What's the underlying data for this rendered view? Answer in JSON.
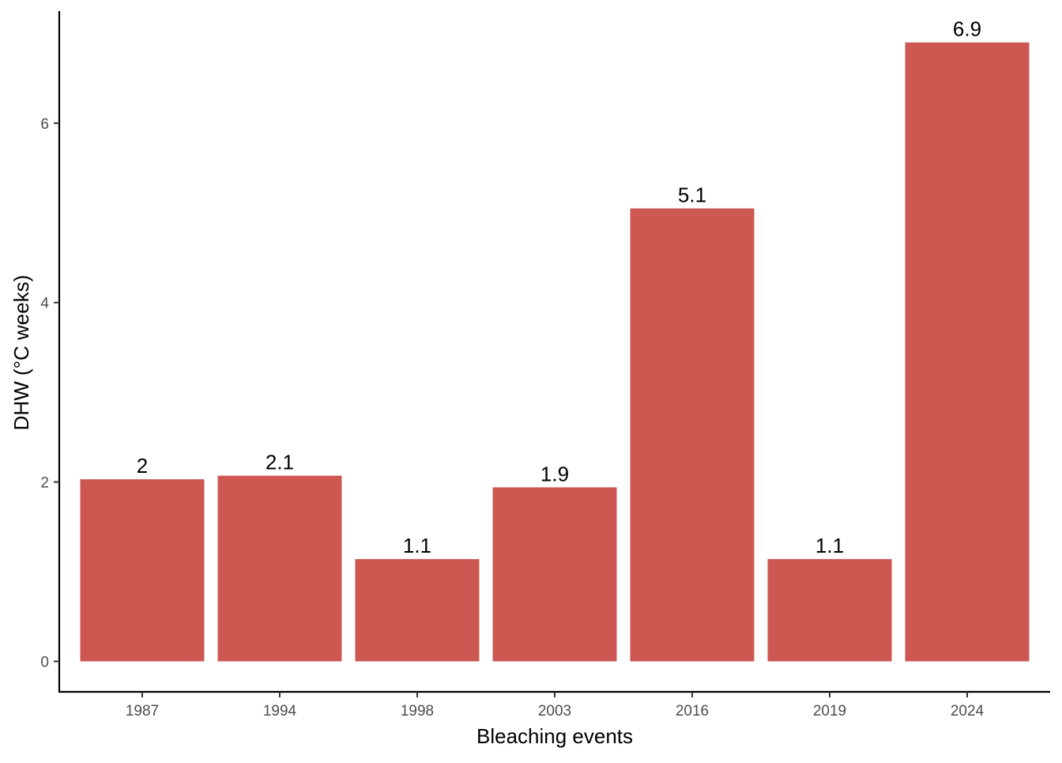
{
  "chart_data": {
    "type": "bar",
    "title": "",
    "xlabel": "Bleaching events",
    "ylabel": "DHW (°C weeks)",
    "categories": [
      "1987",
      "1994",
      "1998",
      "2003",
      "2016",
      "2019",
      "2024"
    ],
    "values": [
      2.03,
      2.07,
      1.14,
      1.94,
      5.05,
      1.14,
      6.9
    ],
    "data_labels": [
      "2",
      "2.1",
      "1.1",
      "1.9",
      "5.1",
      "1.1",
      "6.9"
    ],
    "ylim": [
      -0.34,
      7.25
    ],
    "yticks": [
      0,
      2,
      4,
      6
    ],
    "ytick_labels": [
      "0",
      "2",
      "4",
      "6"
    ],
    "bar_color": "#CD5852",
    "grid": false,
    "legend": "none"
  }
}
